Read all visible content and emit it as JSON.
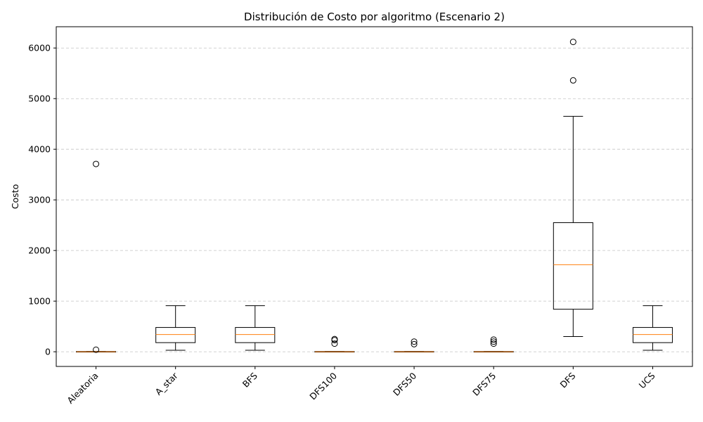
{
  "chart_data": {
    "type": "box",
    "title": "Distribución de Costo por algoritmo (Escenario 2)",
    "xlabel": "",
    "ylabel": "Costo",
    "ylim": [
      -290,
      6420
    ],
    "yticks": [
      0,
      1000,
      2000,
      3000,
      4000,
      5000,
      6000
    ],
    "grid": "y-dashed",
    "categories": [
      "Aleatoria",
      "A_star",
      "BFS",
      "DFS100",
      "DFS50",
      "DFS75",
      "DFS",
      "UCS"
    ],
    "boxes": [
      {
        "category": "Aleatoria",
        "whisker_low": 0,
        "q1": 0,
        "median": 0,
        "q3": 5,
        "whisker_high": 5,
        "outliers": [
          40,
          3710
        ]
      },
      {
        "category": "A_star",
        "whisker_low": 30,
        "q1": 180,
        "median": 340,
        "q3": 480,
        "whisker_high": 910,
        "outliers": []
      },
      {
        "category": "BFS",
        "whisker_low": 30,
        "q1": 180,
        "median": 340,
        "q3": 480,
        "whisker_high": 910,
        "outliers": []
      },
      {
        "category": "DFS100",
        "whisker_low": 0,
        "q1": 0,
        "median": 0,
        "q3": 5,
        "whisker_high": 5,
        "outliers": [
          160,
          230,
          250
        ]
      },
      {
        "category": "DFS50",
        "whisker_low": 0,
        "q1": 0,
        "median": 0,
        "q3": 5,
        "whisker_high": 5,
        "outliers": [
          150,
          200
        ]
      },
      {
        "category": "DFS75",
        "whisker_low": 0,
        "q1": 0,
        "median": 0,
        "q3": 5,
        "whisker_high": 5,
        "outliers": [
          160,
          200,
          240
        ]
      },
      {
        "category": "DFS",
        "whisker_low": 300,
        "q1": 840,
        "median": 1720,
        "q3": 2550,
        "whisker_high": 4650,
        "outliers": [
          5360,
          6120
        ]
      },
      {
        "category": "UCS",
        "whisker_low": 30,
        "q1": 180,
        "median": 340,
        "q3": 480,
        "whisker_high": 910,
        "outliers": []
      }
    ],
    "colors": {
      "box": "#000000",
      "median": "#ff7f0e",
      "grid": "#b0b0b0"
    }
  }
}
